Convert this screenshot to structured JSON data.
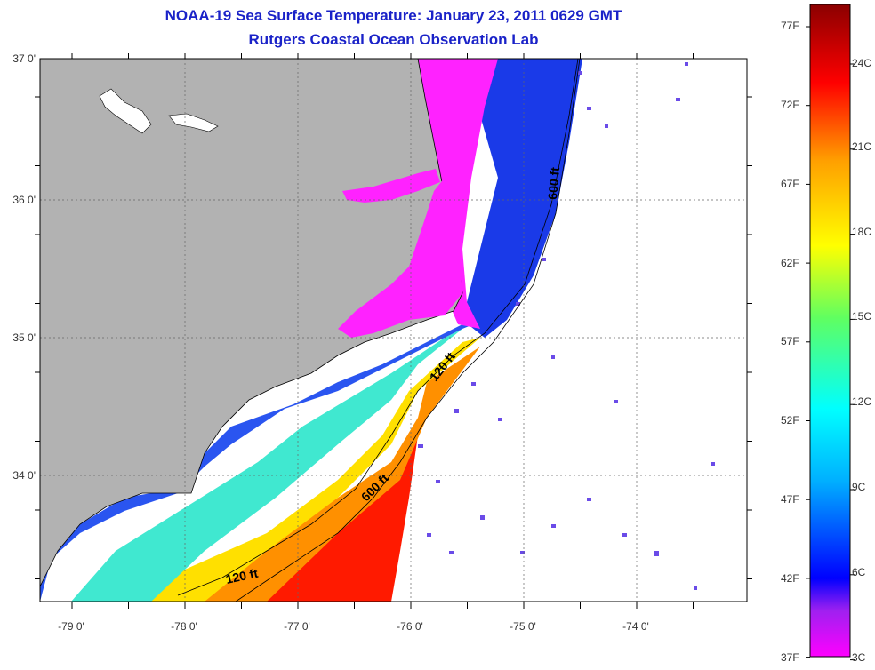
{
  "title": "NOAA-19 Sea Surface Temperature:  January 23, 2011 0629 GMT",
  "subtitle": "Rutgers Coastal Ocean Observation Lab",
  "colors": {
    "land": "#b2b2b2",
    "title": "#1a22c8",
    "no_data": "#ffffff",
    "depth_contour": "#000000"
  },
  "map": {
    "lat_labels": [
      "37 0'",
      "36 0'",
      "35 0'",
      "34 0'"
    ],
    "lon_labels": [
      "-79 0'",
      "-78 0'",
      "-77 0'",
      "-76 0'",
      "-75 0'",
      "-74 0'"
    ],
    "contour_labels": [
      "120 ft",
      "600 ft",
      "120 ft",
      "600 ft"
    ],
    "lat_range": [
      33.25,
      37.0
    ],
    "lon_range": [
      -79.3,
      -73.3
    ],
    "grid": "dotted"
  },
  "colorbar": {
    "fahrenheit_labels": [
      "77F",
      "72F",
      "67F",
      "62F",
      "57F",
      "52F",
      "47F",
      "42F",
      "37F"
    ],
    "celsius_labels": [
      "24C",
      "21C",
      "18C",
      "15C",
      "12C",
      "9C",
      "6C",
      "3C"
    ],
    "range_c": [
      3,
      26
    ]
  }
}
